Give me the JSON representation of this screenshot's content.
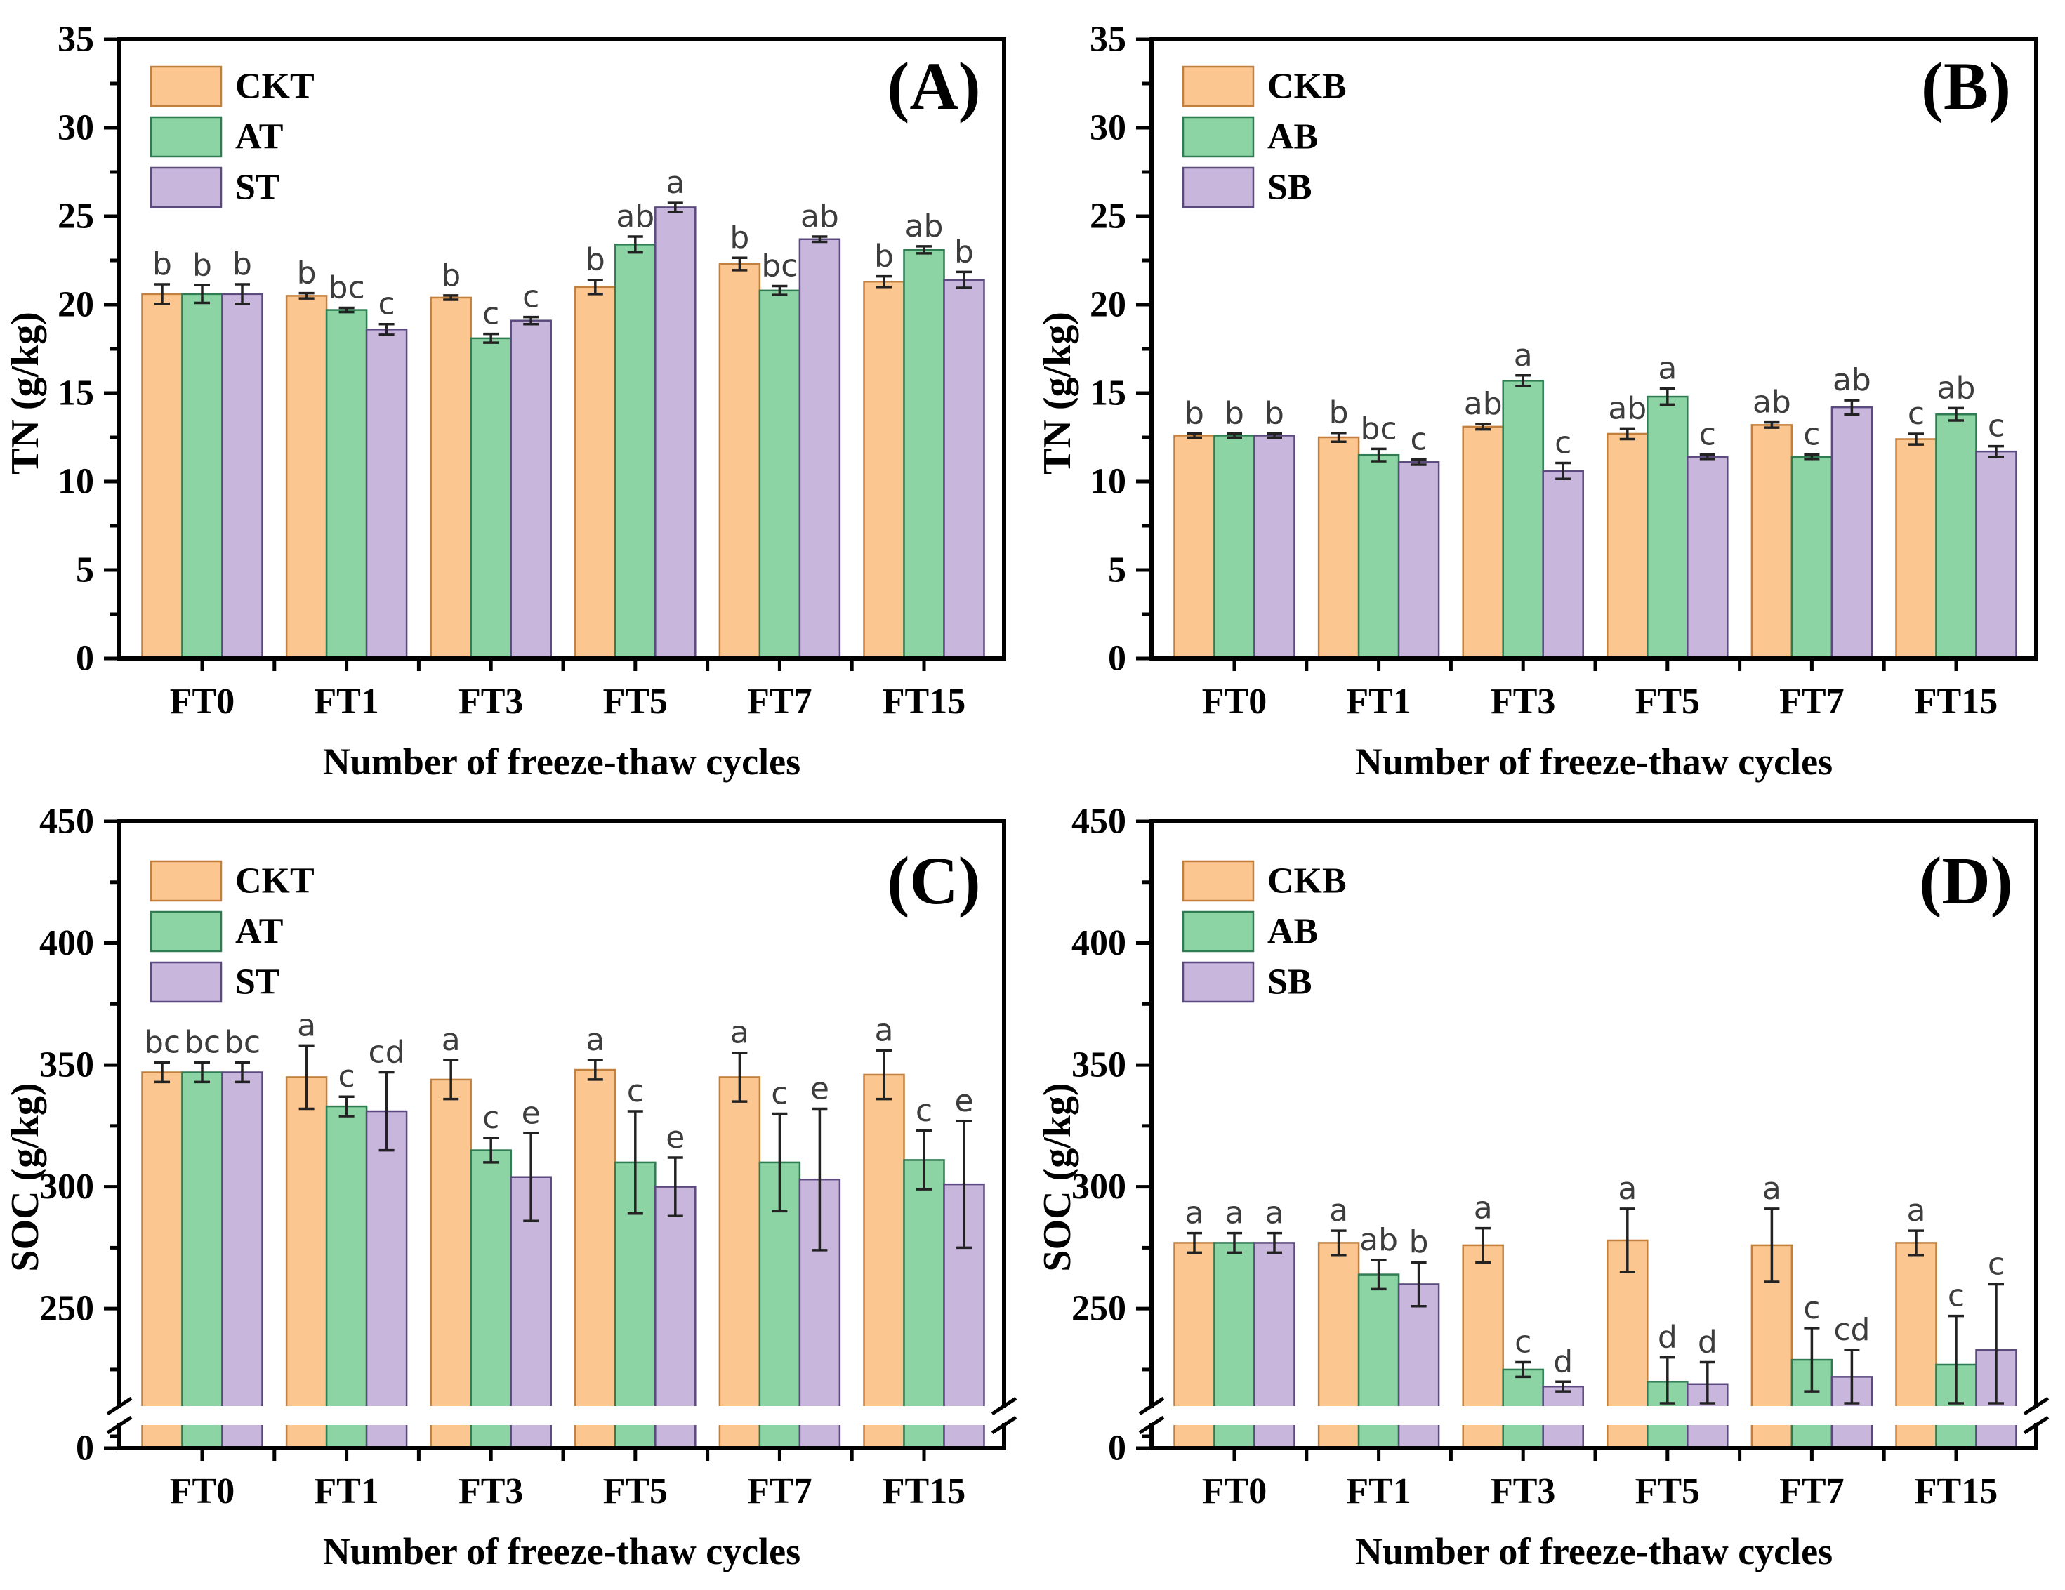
{
  "figure": {
    "x_axis_title": "Number of freeze-thaw cycles",
    "background": "#ffffff"
  },
  "chart_data": {
    "type": "bar",
    "categories": [
      "FT0",
      "FT1",
      "FT3",
      "FT5",
      "FT7",
      "FT15"
    ],
    "x_axis_label": "Number of freeze-thaw cycles",
    "colors": {
      "fill": {
        "orange": "#FBC690",
        "green": "#8CD4A4",
        "purple": "#C8B6DD"
      },
      "border": {
        "orange": "#C2803E",
        "green": "#2F7B52",
        "purple": "#5A4A7D"
      },
      "error_bar": "#222222",
      "sig_letter": "#3d3d3d"
    },
    "panels": [
      {
        "id": "a",
        "tag": "(A)",
        "y_label": "TN (g/kg)",
        "axis": {
          "type": "linear",
          "max": 35,
          "majors": [
            0,
            5,
            10,
            15,
            20,
            25,
            30,
            35
          ],
          "minors": [
            2.5,
            7.5,
            12.5,
            17.5,
            22.5,
            27.5,
            32.5
          ]
        },
        "series": [
          {
            "name": "CKT",
            "key": "orange",
            "values": [
              20.6,
              20.5,
              20.4,
              21.0,
              22.3,
              21.3
            ],
            "errors": [
              0.55,
              0.15,
              0.12,
              0.4,
              0.35,
              0.3
            ],
            "letters": [
              "b",
              "b",
              "b",
              "b",
              "b",
              "b"
            ]
          },
          {
            "name": "AT",
            "key": "green",
            "values": [
              20.6,
              19.7,
              18.1,
              23.4,
              20.8,
              23.1
            ],
            "errors": [
              0.5,
              0.12,
              0.25,
              0.45,
              0.25,
              0.2
            ],
            "letters": [
              "b",
              "bc",
              "c",
              "ab",
              "bc",
              "ab"
            ]
          },
          {
            "name": "ST",
            "key": "purple",
            "values": [
              20.6,
              18.6,
              19.1,
              25.5,
              23.7,
              21.4
            ],
            "errors": [
              0.55,
              0.3,
              0.2,
              0.25,
              0.15,
              0.45
            ],
            "letters": [
              "b",
              "c",
              "c",
              "a",
              "ab",
              "b"
            ]
          }
        ]
      },
      {
        "id": "b",
        "tag": "(B)",
        "y_label": "TN (g/kg)",
        "axis": {
          "type": "linear",
          "max": 35,
          "majors": [
            0,
            5,
            10,
            15,
            20,
            25,
            30,
            35
          ],
          "minors": [
            2.5,
            7.5,
            12.5,
            17.5,
            22.5,
            27.5,
            32.5
          ]
        },
        "series": [
          {
            "name": "CKB",
            "key": "orange",
            "values": [
              12.6,
              12.5,
              13.1,
              12.7,
              13.2,
              12.4
            ],
            "errors": [
              0.12,
              0.25,
              0.15,
              0.3,
              0.15,
              0.3
            ],
            "letters": [
              "b",
              "b",
              "ab",
              "ab",
              "ab",
              "c"
            ]
          },
          {
            "name": "AB",
            "key": "green",
            "values": [
              12.6,
              11.5,
              15.7,
              14.8,
              11.4,
              13.8
            ],
            "errors": [
              0.12,
              0.35,
              0.3,
              0.45,
              0.12,
              0.35
            ],
            "letters": [
              "b",
              "bc",
              "a",
              "a",
              "c",
              "ab"
            ]
          },
          {
            "name": "SB",
            "key": "purple",
            "values": [
              12.6,
              11.1,
              10.6,
              11.4,
              14.2,
              11.7
            ],
            "errors": [
              0.12,
              0.15,
              0.45,
              0.12,
              0.4,
              0.3
            ],
            "letters": [
              "b",
              "c",
              "c",
              "c",
              "ab",
              "c"
            ]
          }
        ]
      },
      {
        "id": "c",
        "tag": "(C)",
        "y_label": "SOC (g/kg)",
        "axis": {
          "type": "broken",
          "max": 450,
          "majors": [
            450,
            400,
            350,
            300,
            250,
            0
          ],
          "minors": [
            425,
            375,
            325,
            275,
            225
          ],
          "upper_min": 210
        },
        "series": [
          {
            "name": "CKT",
            "key": "orange",
            "values": [
              347,
              345,
              344,
              348,
              345,
              346
            ],
            "errors": [
              4,
              13,
              8,
              4,
              10,
              10
            ],
            "letters": [
              "bc",
              "a",
              "a",
              "a",
              "a",
              "a"
            ]
          },
          {
            "name": "AT",
            "key": "green",
            "values": [
              347,
              333,
              315,
              310,
              310,
              311
            ],
            "errors": [
              4,
              4,
              5,
              21,
              20,
              12
            ],
            "letters": [
              "bc",
              "c",
              "c",
              "c",
              "c",
              "c"
            ]
          },
          {
            "name": "ST",
            "key": "purple",
            "values": [
              347,
              331,
              304,
              300,
              303,
              301
            ],
            "errors": [
              4,
              16,
              18,
              12,
              29,
              26
            ],
            "letters": [
              "bc",
              "cd",
              "e",
              "e",
              "e",
              "e"
            ]
          }
        ]
      },
      {
        "id": "d",
        "tag": "(D)",
        "y_label": "SOC (g/kg)",
        "axis": {
          "type": "broken",
          "max": 450,
          "majors": [
            450,
            400,
            350,
            300,
            250,
            0
          ],
          "minors": [
            425,
            375,
            325,
            275,
            225
          ],
          "upper_min": 210
        },
        "series": [
          {
            "name": "CKB",
            "key": "orange",
            "values": [
              277,
              277,
              276,
              278,
              276,
              277
            ],
            "errors": [
              4,
              5,
              7,
              13,
              15,
              5
            ],
            "letters": [
              "a",
              "a",
              "a",
              "a",
              "a",
              "a"
            ]
          },
          {
            "name": "AB",
            "key": "green",
            "values": [
              277,
              264,
              225,
              220,
              229,
              227
            ],
            "errors": [
              4,
              6,
              3,
              10,
              13,
              20
            ],
            "letters": [
              "a",
              "ab",
              "c",
              "d",
              "c",
              "c"
            ]
          },
          {
            "name": "SB",
            "key": "purple",
            "values": [
              277,
              260,
              218,
              219,
              222,
              233
            ],
            "errors": [
              4,
              9,
              2,
              9,
              11,
              27
            ],
            "letters": [
              "a",
              "b",
              "d",
              "d",
              "cd",
              "c"
            ]
          }
        ]
      }
    ]
  }
}
